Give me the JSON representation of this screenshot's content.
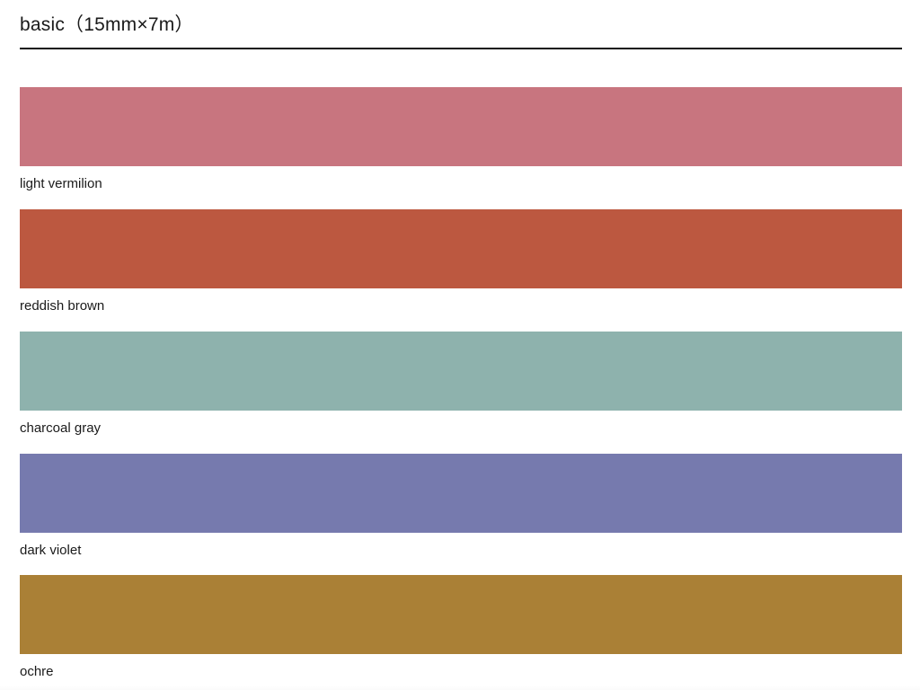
{
  "header": {
    "title": "basic（15mm×7m）"
  },
  "swatches": [
    {
      "name": "light-vermilion",
      "label": "light vermilion",
      "color": "#c8757f"
    },
    {
      "name": "reddish-brown",
      "label": "reddish brown",
      "color": "#bc5840"
    },
    {
      "name": "charcoal-gray",
      "label": "charcoal gray",
      "color": "#8eb2ad"
    },
    {
      "name": "dark-violet",
      "label": "dark violet",
      "color": "#767aae"
    },
    {
      "name": "ochre",
      "label": "ochre",
      "color": "#aa8036"
    }
  ]
}
